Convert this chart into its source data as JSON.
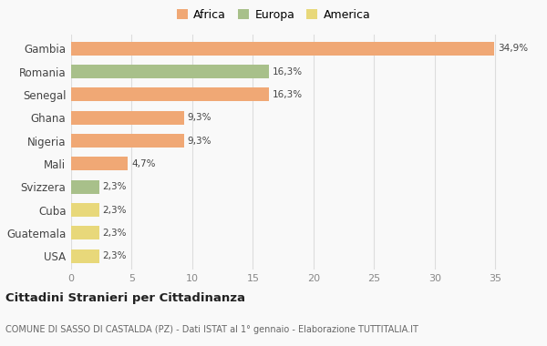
{
  "countries": [
    "Gambia",
    "Romania",
    "Senegal",
    "Ghana",
    "Nigeria",
    "Mali",
    "Svizzera",
    "Cuba",
    "Guatemala",
    "USA"
  ],
  "values": [
    34.9,
    16.3,
    16.3,
    9.3,
    9.3,
    4.7,
    2.3,
    2.3,
    2.3,
    2.3
  ],
  "labels": [
    "34,9%",
    "16,3%",
    "16,3%",
    "9,3%",
    "9,3%",
    "4,7%",
    "2,3%",
    "2,3%",
    "2,3%",
    "2,3%"
  ],
  "colors": [
    "#F0A875",
    "#A8C08A",
    "#F0A875",
    "#F0A875",
    "#F0A875",
    "#F0A875",
    "#A8C08A",
    "#E8D87A",
    "#E8D87A",
    "#E8D87A"
  ],
  "legend_labels": [
    "Africa",
    "Europa",
    "America"
  ],
  "legend_colors": [
    "#F0A875",
    "#A8C08A",
    "#E8D87A"
  ],
  "title": "Cittadini Stranieri per Cittadinanza",
  "subtitle": "COMUNE DI SASSO DI CASTALDA (PZ) - Dati ISTAT al 1° gennaio - Elaborazione TUTTITALIA.IT",
  "xlim": [
    0,
    37
  ],
  "xticks": [
    0,
    5,
    10,
    15,
    20,
    25,
    30,
    35
  ],
  "background_color": "#f9f9f9",
  "bar_height": 0.6,
  "grid_color": "#dddddd"
}
